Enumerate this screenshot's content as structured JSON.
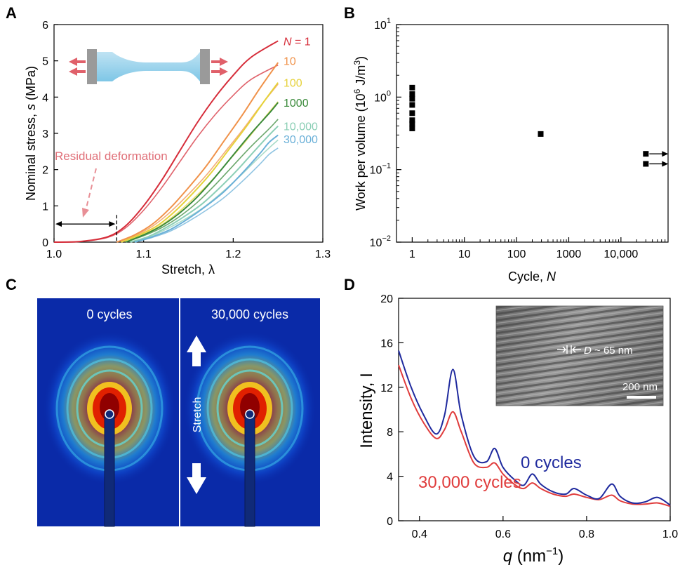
{
  "panels": {
    "A": {
      "letter": "A"
    },
    "B": {
      "letter": "B"
    },
    "C": {
      "letter": "C"
    },
    "D": {
      "letter": "D"
    }
  },
  "chart_data": [
    {
      "panel": "A",
      "type": "line",
      "xlabel": "Stretch, λ",
      "ylabel": "Nominal stress, s (MPa)",
      "xlim": [
        1.0,
        1.3
      ],
      "ylim": [
        0,
        6
      ],
      "xticks": [
        1.0,
        1.1,
        1.2,
        1.3
      ],
      "xtick_labels": [
        "1.0",
        "1.1",
        "1.2",
        "1.3"
      ],
      "yticks": [
        0,
        1,
        2,
        3,
        4,
        5,
        6
      ],
      "ytick_labels": [
        "0",
        "1",
        "2",
        "3",
        "4",
        "5",
        "6"
      ],
      "series": [
        {
          "name": "N = 1",
          "color": "#d62d3a",
          "label_y": 5.55,
          "x": [
            1.0,
            1.03,
            1.06,
            1.08,
            1.1,
            1.12,
            1.14,
            1.16,
            1.18,
            1.2,
            1.22,
            1.25
          ],
          "y": [
            0,
            0.02,
            0.15,
            0.45,
            1.0,
            1.7,
            2.5,
            3.3,
            4.0,
            4.6,
            5.1,
            5.55
          ]
        },
        {
          "name": "10",
          "color": "#f0924a",
          "label_y": 5.0,
          "x": [
            1.07,
            1.09,
            1.11,
            1.13,
            1.15,
            1.17,
            1.19,
            1.21,
            1.23,
            1.25
          ],
          "y": [
            0,
            0.2,
            0.5,
            0.95,
            1.5,
            2.1,
            2.8,
            3.5,
            4.25,
            4.95
          ]
        },
        {
          "name": "100",
          "color": "#e6d23a",
          "label_y": 4.4,
          "x": [
            1.075,
            1.095,
            1.115,
            1.135,
            1.155,
            1.175,
            1.195,
            1.215,
            1.235,
            1.25
          ],
          "y": [
            0,
            0.2,
            0.45,
            0.85,
            1.35,
            1.9,
            2.55,
            3.2,
            3.9,
            4.4
          ]
        },
        {
          "name": "1000",
          "color": "#3a8a3a",
          "label_y": 3.85,
          "x": [
            1.08,
            1.1,
            1.12,
            1.14,
            1.16,
            1.18,
            1.2,
            1.22,
            1.24,
            1.25
          ],
          "y": [
            0,
            0.2,
            0.45,
            0.8,
            1.25,
            1.8,
            2.4,
            3.0,
            3.55,
            3.85
          ]
        },
        {
          "name": "10,000",
          "color": "#8ccfb6",
          "label_y": 3.2,
          "x": [
            1.085,
            1.105,
            1.125,
            1.145,
            1.165,
            1.185,
            1.205,
            1.225,
            1.24,
            1.25
          ],
          "y": [
            0,
            0.15,
            0.4,
            0.7,
            1.05,
            1.5,
            2.0,
            2.55,
            2.95,
            3.2
          ]
        },
        {
          "name": "30,000",
          "color": "#6ab0d8",
          "label_y": 2.85,
          "x": [
            1.09,
            1.11,
            1.13,
            1.15,
            1.17,
            1.19,
            1.21,
            1.23,
            1.24,
            1.25
          ],
          "y": [
            0,
            0.15,
            0.35,
            0.65,
            1.0,
            1.4,
            1.9,
            2.45,
            2.75,
            2.95
          ]
        }
      ],
      "n_label_prefix": "N",
      "n_label_suffix": " = 1",
      "annotation": "Residual deformation",
      "residual_end_x": 1.07
    },
    {
      "panel": "B",
      "type": "scatter",
      "xlabel_prefix": "Cycle, ",
      "xlabel_var": "N",
      "ylabel_pre": "Work per volume (10",
      "ylabel_sup1": "6",
      "ylabel_mid": " J/m",
      "ylabel_sup2": "3",
      "ylabel_post": ")",
      "xscale": "log",
      "yscale": "log",
      "xlim": [
        0.5,
        80000
      ],
      "ylim": [
        0.01,
        10
      ],
      "xticks": [
        1,
        10,
        100,
        1000,
        10000
      ],
      "xtick_labels": [
        "1",
        "10",
        "100",
        "1000",
        "10,000"
      ],
      "yticks": [
        0.01,
        0.1,
        1,
        10
      ],
      "ytick_base": "10",
      "ytick_exps": [
        "−2",
        "−1",
        "0",
        "1"
      ],
      "points": [
        {
          "x": 1,
          "y": 1.35
        },
        {
          "x": 1,
          "y": 1.1
        },
        {
          "x": 1,
          "y": 0.95
        },
        {
          "x": 1,
          "y": 0.78
        },
        {
          "x": 1,
          "y": 0.6
        },
        {
          "x": 1,
          "y": 0.48
        },
        {
          "x": 1,
          "y": 0.43
        },
        {
          "x": 1,
          "y": 0.37
        },
        {
          "x": 290,
          "y": 0.31
        },
        {
          "x": 30000,
          "y": 0.165,
          "runout": true
        },
        {
          "x": 30000,
          "y": 0.12,
          "runout": true
        }
      ]
    },
    {
      "panel": "D",
      "type": "line",
      "xlabel_var": "q",
      "xlabel_post": " (nm",
      "xlabel_sup": "−1",
      "xlabel_end": ")",
      "ylabel": "Intensity, I",
      "xlim": [
        0.35,
        1.0
      ],
      "ylim": [
        0,
        20
      ],
      "xticks": [
        0.4,
        0.6,
        0.8,
        1.0
      ],
      "xtick_labels": [
        "0.4",
        "0.6",
        "0.8",
        "1.0"
      ],
      "yticks": [
        0,
        4,
        8,
        12,
        16,
        20
      ],
      "ytick_labels": [
        "0",
        "4",
        "8",
        "12",
        "16",
        "20"
      ],
      "series": [
        {
          "name": "0 cycles",
          "color": "#1f2a9e",
          "x": [
            0.35,
            0.38,
            0.41,
            0.44,
            0.46,
            0.48,
            0.5,
            0.53,
            0.56,
            0.58,
            0.6,
            0.63,
            0.65,
            0.67,
            0.69,
            0.72,
            0.75,
            0.77,
            0.8,
            0.83,
            0.86,
            0.88,
            0.91,
            0.94,
            0.97,
            1.0
          ],
          "y": [
            15.3,
            12.0,
            9.5,
            7.8,
            9.5,
            13.6,
            9.5,
            5.8,
            5.3,
            6.5,
            4.8,
            3.6,
            3.2,
            4.2,
            3.3,
            2.6,
            2.4,
            2.9,
            2.3,
            2.0,
            3.3,
            2.2,
            1.6,
            1.7,
            2.1,
            1.4
          ]
        },
        {
          "name": "30,000 cycles",
          "color": "#e03c3c",
          "x": [
            0.35,
            0.38,
            0.41,
            0.44,
            0.46,
            0.48,
            0.5,
            0.53,
            0.56,
            0.58,
            0.6,
            0.63,
            0.65,
            0.67,
            0.69,
            0.72,
            0.75,
            0.77,
            0.8,
            0.83,
            0.86,
            0.88,
            0.91,
            0.94,
            0.97,
            1.0
          ],
          "y": [
            14.0,
            11.0,
            8.8,
            7.4,
            8.2,
            9.8,
            8.0,
            5.2,
            4.8,
            5.2,
            4.2,
            3.2,
            2.9,
            3.4,
            2.9,
            2.4,
            2.2,
            2.4,
            2.1,
            1.9,
            2.3,
            1.8,
            1.5,
            1.5,
            1.6,
            1.3
          ]
        }
      ],
      "inset_label_D": "D",
      "inset_label_rest": " ~ 65 nm",
      "scalebar": "200 nm"
    }
  ],
  "panel_C": {
    "left_label": "0 cycles",
    "right_label": "30,000 cycles",
    "stretch_label": "Stretch"
  }
}
